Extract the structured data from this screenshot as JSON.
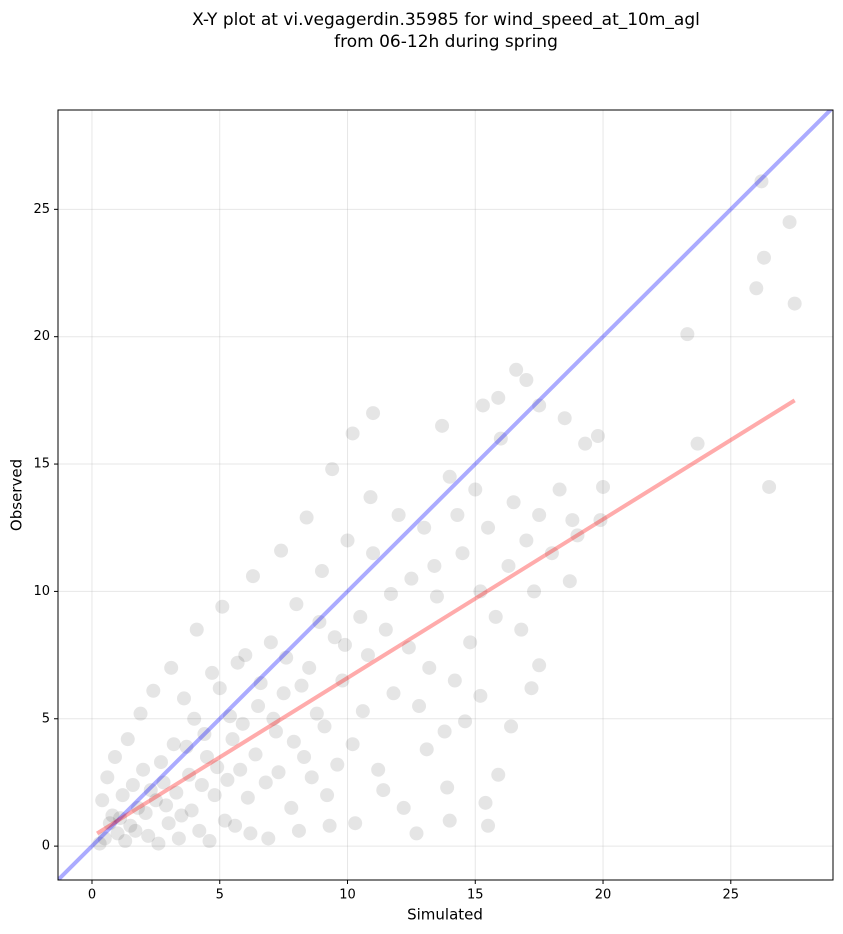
{
  "chart_data": {
    "type": "scatter",
    "title": [
      "X-Y plot at vi.vegagerdin.35985 for wind_speed_at_10m_agl",
      "from 06-12h during spring"
    ],
    "x_label": "Simulated",
    "y_label": "Observed",
    "xlim": [
      -1.33,
      29.0
    ],
    "ylim": [
      -1.33,
      28.9
    ],
    "xticks": [
      0,
      5,
      10,
      15,
      20,
      25
    ],
    "yticks": [
      0,
      5,
      10,
      15,
      20,
      25
    ],
    "grid": true,
    "series": [
      {
        "mode": "points",
        "color": "rgba(0,0,0,0.1)",
        "x": [
          26.2,
          27.3,
          26.3,
          26.0,
          27.5,
          23.3,
          23.7,
          26.5,
          20.0,
          19.8,
          19.3,
          16.6,
          17.0,
          17.5,
          18.5,
          15.9,
          15.3,
          11.0,
          10.2,
          13.7,
          15.2,
          15.4,
          15.5,
          14.0,
          15.9,
          16.4,
          17.2,
          17.5,
          18.7,
          19.9,
          0.5,
          0.8,
          1.0,
          1.2,
          1.5,
          1.8,
          2.0,
          2.2,
          2.5,
          2.8,
          3.0,
          3.2,
          3.5,
          3.8,
          4.0,
          4.2,
          4.5,
          4.8,
          5.0,
          5.2,
          5.5,
          5.8,
          6.0,
          6.2,
          6.5,
          6.8,
          7.0,
          7.2,
          7.5,
          7.8,
          8.0,
          8.3,
          8.5,
          8.8,
          9.0,
          9.2,
          9.5,
          9.8,
          10.0,
          10.2,
          10.5,
          10.8,
          11.0,
          11.2,
          11.5,
          11.8,
          12.0,
          12.2,
          12.5,
          12.8,
          13.0,
          13.2,
          13.5,
          13.8,
          14.0,
          14.2,
          14.5,
          14.8,
          15.0,
          15.2,
          15.5,
          15.8,
          16.0,
          16.3,
          16.5,
          16.8,
          17.0,
          17.3,
          17.5,
          18.0,
          18.3,
          18.8,
          19.0,
          0.3,
          0.4,
          0.6,
          0.7,
          0.9,
          1.1,
          1.3,
          1.4,
          1.6,
          1.7,
          1.9,
          2.1,
          2.3,
          2.4,
          2.6,
          2.7,
          2.9,
          3.1,
          3.3,
          3.4,
          3.6,
          3.7,
          3.9,
          4.1,
          4.3,
          4.4,
          4.6,
          4.7,
          4.9,
          5.1,
          5.3,
          5.4,
          5.6,
          5.7,
          5.9,
          6.1,
          6.3,
          6.4,
          6.6,
          6.9,
          7.1,
          7.3,
          7.4,
          7.6,
          7.9,
          8.1,
          8.2,
          8.4,
          8.6,
          8.9,
          9.1,
          9.3,
          9.4,
          9.6,
          9.9,
          10.3,
          10.6,
          10.9,
          11.4,
          11.7,
          12.4,
          12.7,
          13.1,
          13.4,
          13.9,
          14.3,
          14.6
        ],
        "values": [
          26.1,
          24.5,
          23.1,
          21.9,
          21.3,
          20.1,
          15.8,
          14.1,
          14.1,
          16.1,
          15.8,
          18.7,
          18.3,
          17.3,
          16.8,
          17.6,
          17.3,
          17.0,
          16.2,
          16.5,
          5.9,
          1.7,
          0.8,
          1.0,
          2.8,
          4.7,
          6.2,
          7.1,
          10.4,
          12.8,
          0.3,
          1.2,
          0.5,
          2.0,
          0.8,
          1.5,
          3.0,
          0.4,
          1.8,
          2.5,
          0.9,
          4.0,
          1.2,
          2.8,
          5.0,
          0.6,
          3.5,
          2.0,
          6.2,
          1.0,
          4.2,
          3.0,
          7.5,
          0.5,
          5.5,
          2.5,
          8.0,
          4.5,
          6.0,
          1.5,
          9.5,
          3.5,
          7.0,
          5.2,
          10.8,
          2.0,
          8.2,
          6.5,
          12.0,
          4.0,
          9.0,
          7.5,
          11.5,
          3.0,
          8.5,
          6.0,
          13.0,
          1.5,
          10.5,
          5.5,
          12.5,
          7.0,
          9.8,
          4.5,
          14.5,
          6.5,
          11.5,
          8.0,
          14.0,
          10.0,
          12.5,
          9.0,
          16.0,
          11.0,
          13.5,
          8.5,
          12.0,
          10.0,
          13.0,
          11.5,
          14.0,
          12.8,
          12.2,
          0.1,
          1.8,
          2.7,
          0.9,
          3.5,
          1.1,
          0.2,
          4.2,
          2.4,
          0.6,
          5.2,
          1.3,
          2.2,
          6.1,
          0.1,
          3.3,
          1.6,
          7.0,
          2.1,
          0.3,
          5.8,
          3.9,
          1.4,
          8.5,
          2.4,
          4.4,
          0.2,
          6.8,
          3.1,
          9.4,
          2.6,
          5.1,
          0.8,
          7.2,
          4.8,
          1.9,
          10.6,
          3.6,
          6.4,
          0.3,
          5.0,
          2.9,
          11.6,
          7.4,
          4.1,
          0.6,
          6.3,
          12.9,
          2.7,
          8.8,
          4.7,
          0.8,
          14.8,
          3.2,
          7.9,
          0.9,
          5.3,
          13.7,
          2.2,
          9.9,
          7.8,
          0.5,
          3.8,
          11.0,
          2.3,
          13.0,
          4.9
        ]
      },
      {
        "mode": "line",
        "color": "rgba(0,0,255,0.33)",
        "x": [
          -1.33,
          29.0
        ],
        "values": [
          -1.33,
          29.0
        ]
      },
      {
        "mode": "line",
        "color": "rgba(255,0,0,0.33)",
        "x": [
          0.2,
          27.5
        ],
        "values": [
          0.5,
          17.5
        ]
      }
    ]
  }
}
